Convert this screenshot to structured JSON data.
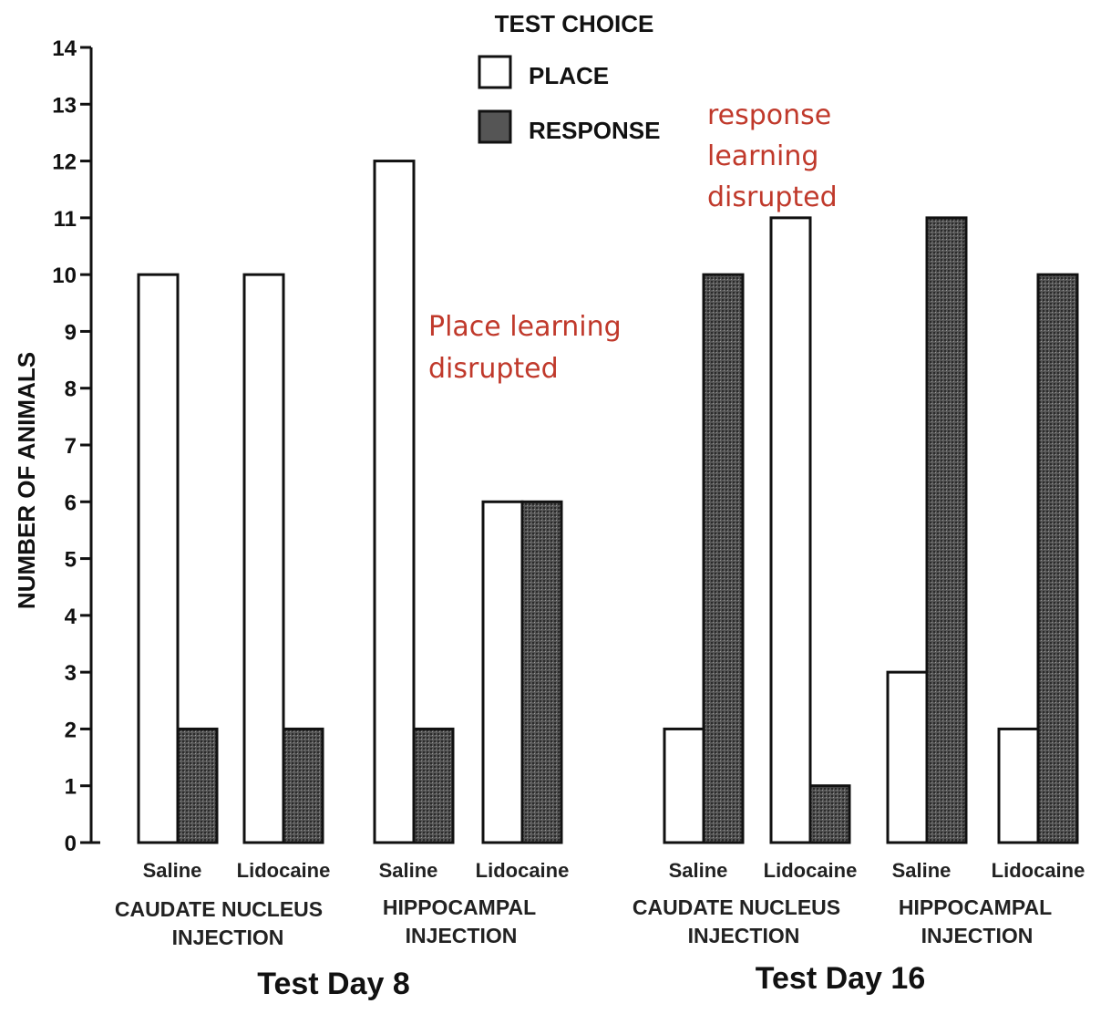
{
  "chart_data": {
    "type": "bar",
    "title": "",
    "ylabel": "NUMBER OF ANIMALS",
    "ylim": [
      0,
      14
    ],
    "yticks": [
      0,
      1,
      2,
      3,
      4,
      5,
      6,
      7,
      8,
      9,
      10,
      11,
      12,
      13,
      14
    ],
    "legend": {
      "title": "TEST CHOICE",
      "placement": "top-center",
      "entries": [
        "PLACE",
        "RESPONSE"
      ]
    },
    "colors": {
      "place": "#ffffff",
      "response": "#555555",
      "annotation": "#c0392b"
    },
    "series": [
      {
        "name": "PLACE",
        "values": [
          10,
          10,
          12,
          6,
          2,
          11,
          3,
          2
        ]
      },
      {
        "name": "RESPONSE",
        "values": [
          2,
          2,
          2,
          6,
          10,
          1,
          11,
          10
        ]
      }
    ],
    "categories": [
      "Saline",
      "Lidocaine",
      "Saline",
      "Lidocaine",
      "Saline",
      "Lidocaine",
      "Saline",
      "Lidocaine"
    ],
    "groups": [
      {
        "line1": "CAUDATE NUCLEUS",
        "line2": "INJECTION"
      },
      {
        "line1": "HIPPOCAMPAL",
        "line2": "INJECTION"
      },
      {
        "line1": "CAUDATE NUCLEUS",
        "line2": "INJECTION"
      },
      {
        "line1": "HIPPOCAMPAL",
        "line2": "INJECTION"
      }
    ],
    "days": [
      "Test Day 8",
      "Test Day 16"
    ],
    "annotations": [
      {
        "lines": [
          "Place learning",
          "disrupted"
        ]
      },
      {
        "lines": [
          "response",
          "learning",
          "disrupted"
        ]
      }
    ]
  }
}
